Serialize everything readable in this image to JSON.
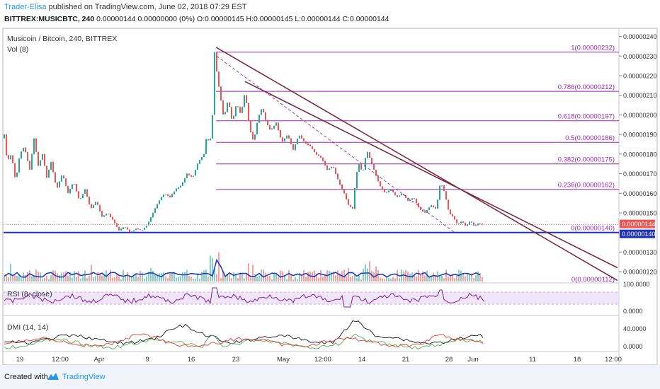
{
  "header": {
    "author": "Trader-Elisa",
    "published_text": "published on TradingView.com, June 02, 2018 07:29 EST",
    "symbol_line": "BITTREX:MUSICBTC, 240",
    "ohlc_values": "0.00000144 0.00000000 (0%) O:0.00000145 H:0.00000145 L:0.00000144 C:0.00000144"
  },
  "legend": {
    "title": "Musicoin / Bitcoin, 240, BITTREX",
    "vol": "Vol (8)",
    "rsi": "RSI (8, close)",
    "dmi": "DMI (14, 14)"
  },
  "footer": {
    "created_with": "Created with",
    "brand": "TradingView",
    "brand_icon": "tradingview-logo-icon"
  },
  "colors": {
    "up": "#26a69a",
    "down": "#ef5350",
    "fib": "#9c27b0",
    "trend": "#7b2c3f",
    "support": "#1e2fbf",
    "rsi": "#7b1fa2",
    "volume_ma": "#1e3cc8",
    "last_price_bg": "#ef5350",
    "support_label_bg": "#1e2fbf"
  },
  "chart_data": {
    "type": "candlestick",
    "title": "Musicoin / Bitcoin, 240, BITTREX",
    "price_axis": {
      "ticks": [
        "0.00000240",
        "0.00000230",
        "0.00000220",
        "0.00000210",
        "0.00000200",
        "0.00000190",
        "0.00000180",
        "0.00000170",
        "0.00000160",
        "0.00000150",
        "0.00000130",
        "0.00000120"
      ],
      "range": [
        1.15e-06,
        2.42e-06
      ],
      "last_price_label": "0.00000144",
      "support_label": "0.00000140"
    },
    "time_axis": {
      "ticks": [
        "19",
        "12:00",
        "Apr",
        "9",
        "16",
        "23",
        "May",
        "12:00",
        "14",
        "21",
        "28",
        "Jun",
        "11",
        "18",
        "12:00"
      ]
    },
    "fib_levels": [
      {
        "label": "1(0.00000232)",
        "price": 2.32e-06
      },
      {
        "label": "0.786(0.00000212)",
        "price": 2.12e-06
      },
      {
        "label": "0.618(0.00000197)",
        "price": 1.97e-06
      },
      {
        "label": "0.5(0.00000186)",
        "price": 1.86e-06
      },
      {
        "label": "0.382(0.00000175)",
        "price": 1.75e-06
      },
      {
        "label": "0.236(0.00000162)",
        "price": 1.62e-06
      },
      {
        "label": "0(0.00000140)",
        "price": 1.4e-06
      },
      {
        "label": "0(0.00000112)",
        "price": 1.12e-06
      }
    ],
    "support_level": 1.4e-06,
    "last_price": 1.44e-06,
    "price_path": [
      [
        0,
        1.86e-06
      ],
      [
        6,
        1.9e-06
      ],
      [
        10,
        1.76e-06
      ],
      [
        16,
        1.8e-06
      ],
      [
        22,
        1.66e-06
      ],
      [
        28,
        1.8e-06
      ],
      [
        34,
        1.84e-06
      ],
      [
        42,
        1.72e-06
      ],
      [
        48,
        1.88e-06
      ],
      [
        54,
        1.74e-06
      ],
      [
        60,
        1.8e-06
      ],
      [
        66,
        1.68e-06
      ],
      [
        72,
        1.76e-06
      ],
      [
        80,
        1.62e-06
      ],
      [
        88,
        1.7e-06
      ],
      [
        96,
        1.6e-06
      ],
      [
        104,
        1.66e-06
      ],
      [
        112,
        1.56e-06
      ],
      [
        120,
        1.62e-06
      ],
      [
        128,
        1.52e-06
      ],
      [
        136,
        1.56e-06
      ],
      [
        144,
        1.48e-06
      ],
      [
        152,
        1.5e-06
      ],
      [
        160,
        1.46e-06
      ],
      [
        168,
        1.41e-06
      ],
      [
        176,
        1.43e-06
      ],
      [
        184,
        1.4e-06
      ],
      [
        192,
        1.42e-06
      ],
      [
        200,
        1.41e-06
      ],
      [
        208,
        1.44e-06
      ],
      [
        216,
        1.5e-06
      ],
      [
        224,
        1.56e-06
      ],
      [
        232,
        1.6e-06
      ],
      [
        240,
        1.58e-06
      ],
      [
        248,
        1.62e-06
      ],
      [
        256,
        1.64e-06
      ],
      [
        264,
        1.7e-06
      ],
      [
        272,
        1.68e-06
      ],
      [
        280,
        1.76e-06
      ],
      [
        288,
        1.8e-06
      ],
      [
        292,
        1.9e-06
      ],
      [
        296,
        1.84e-06
      ],
      [
        300,
        2e-06
      ],
      [
        303,
        2.32e-06
      ],
      [
        306,
        2.22e-06
      ],
      [
        310,
        2.12e-06
      ],
      [
        316,
        1.98e-06
      ],
      [
        322,
        2.08e-06
      ],
      [
        328,
        1.96e-06
      ],
      [
        334,
        2.06e-06
      ],
      [
        340,
        2e-06
      ],
      [
        346,
        2.12e-06
      ],
      [
        352,
        1.94e-06
      ],
      [
        358,
        1.86e-06
      ],
      [
        364,
        1.98e-06
      ],
      [
        370,
        2.04e-06
      ],
      [
        376,
        1.96e-06
      ],
      [
        382,
        1.92e-06
      ],
      [
        390,
        1.96e-06
      ],
      [
        398,
        1.86e-06
      ],
      [
        406,
        1.9e-06
      ],
      [
        414,
        1.82e-06
      ],
      [
        422,
        1.9e-06
      ],
      [
        430,
        1.86e-06
      ],
      [
        438,
        1.84e-06
      ],
      [
        446,
        1.8e-06
      ],
      [
        454,
        1.78e-06
      ],
      [
        462,
        1.72e-06
      ],
      [
        470,
        1.74e-06
      ],
      [
        478,
        1.66e-06
      ],
      [
        486,
        1.6e-06
      ],
      [
        492,
        1.54e-06
      ],
      [
        498,
        1.52e-06
      ],
      [
        502,
        1.66e-06
      ],
      [
        506,
        1.76e-06
      ],
      [
        512,
        1.7e-06
      ],
      [
        518,
        1.82e-06
      ],
      [
        524,
        1.76e-06
      ],
      [
        530,
        1.7e-06
      ],
      [
        536,
        1.64e-06
      ],
      [
        544,
        1.6e-06
      ],
      [
        552,
        1.62e-06
      ],
      [
        560,
        1.58e-06
      ],
      [
        568,
        1.6e-06
      ],
      [
        576,
        1.56e-06
      ],
      [
        584,
        1.58e-06
      ],
      [
        592,
        1.52e-06
      ],
      [
        600,
        1.5e-06
      ],
      [
        608,
        1.54e-06
      ],
      [
        616,
        1.52e-06
      ],
      [
        622,
        1.66e-06
      ],
      [
        628,
        1.6e-06
      ],
      [
        634,
        1.5e-06
      ],
      [
        640,
        1.48e-06
      ],
      [
        646,
        1.44e-06
      ],
      [
        652,
        1.46e-06
      ],
      [
        658,
        1.43e-06
      ],
      [
        664,
        1.46e-06
      ],
      [
        670,
        1.43e-06
      ],
      [
        676,
        1.45e-06
      ],
      [
        680,
        1.44e-06
      ]
    ],
    "trendlines": [
      {
        "from": [
          305,
          2.345e-06
        ],
        "to": [
          872,
          1.155e-06
        ]
      },
      {
        "from": [
          346,
          2.17e-06
        ],
        "to": [
          872,
          1.22e-06
        ]
      },
      {
        "from": [
          306,
          2.3e-06
        ],
        "to": [
          642,
          1.4e-06
        ],
        "dashed": true
      }
    ],
    "rsi_axis": {
      "ticks": [
        "100.0000",
        "0.0000"
      ]
    },
    "dmi_axis": {
      "ticks": [
        "40.0000",
        "0.0000"
      ]
    }
  }
}
